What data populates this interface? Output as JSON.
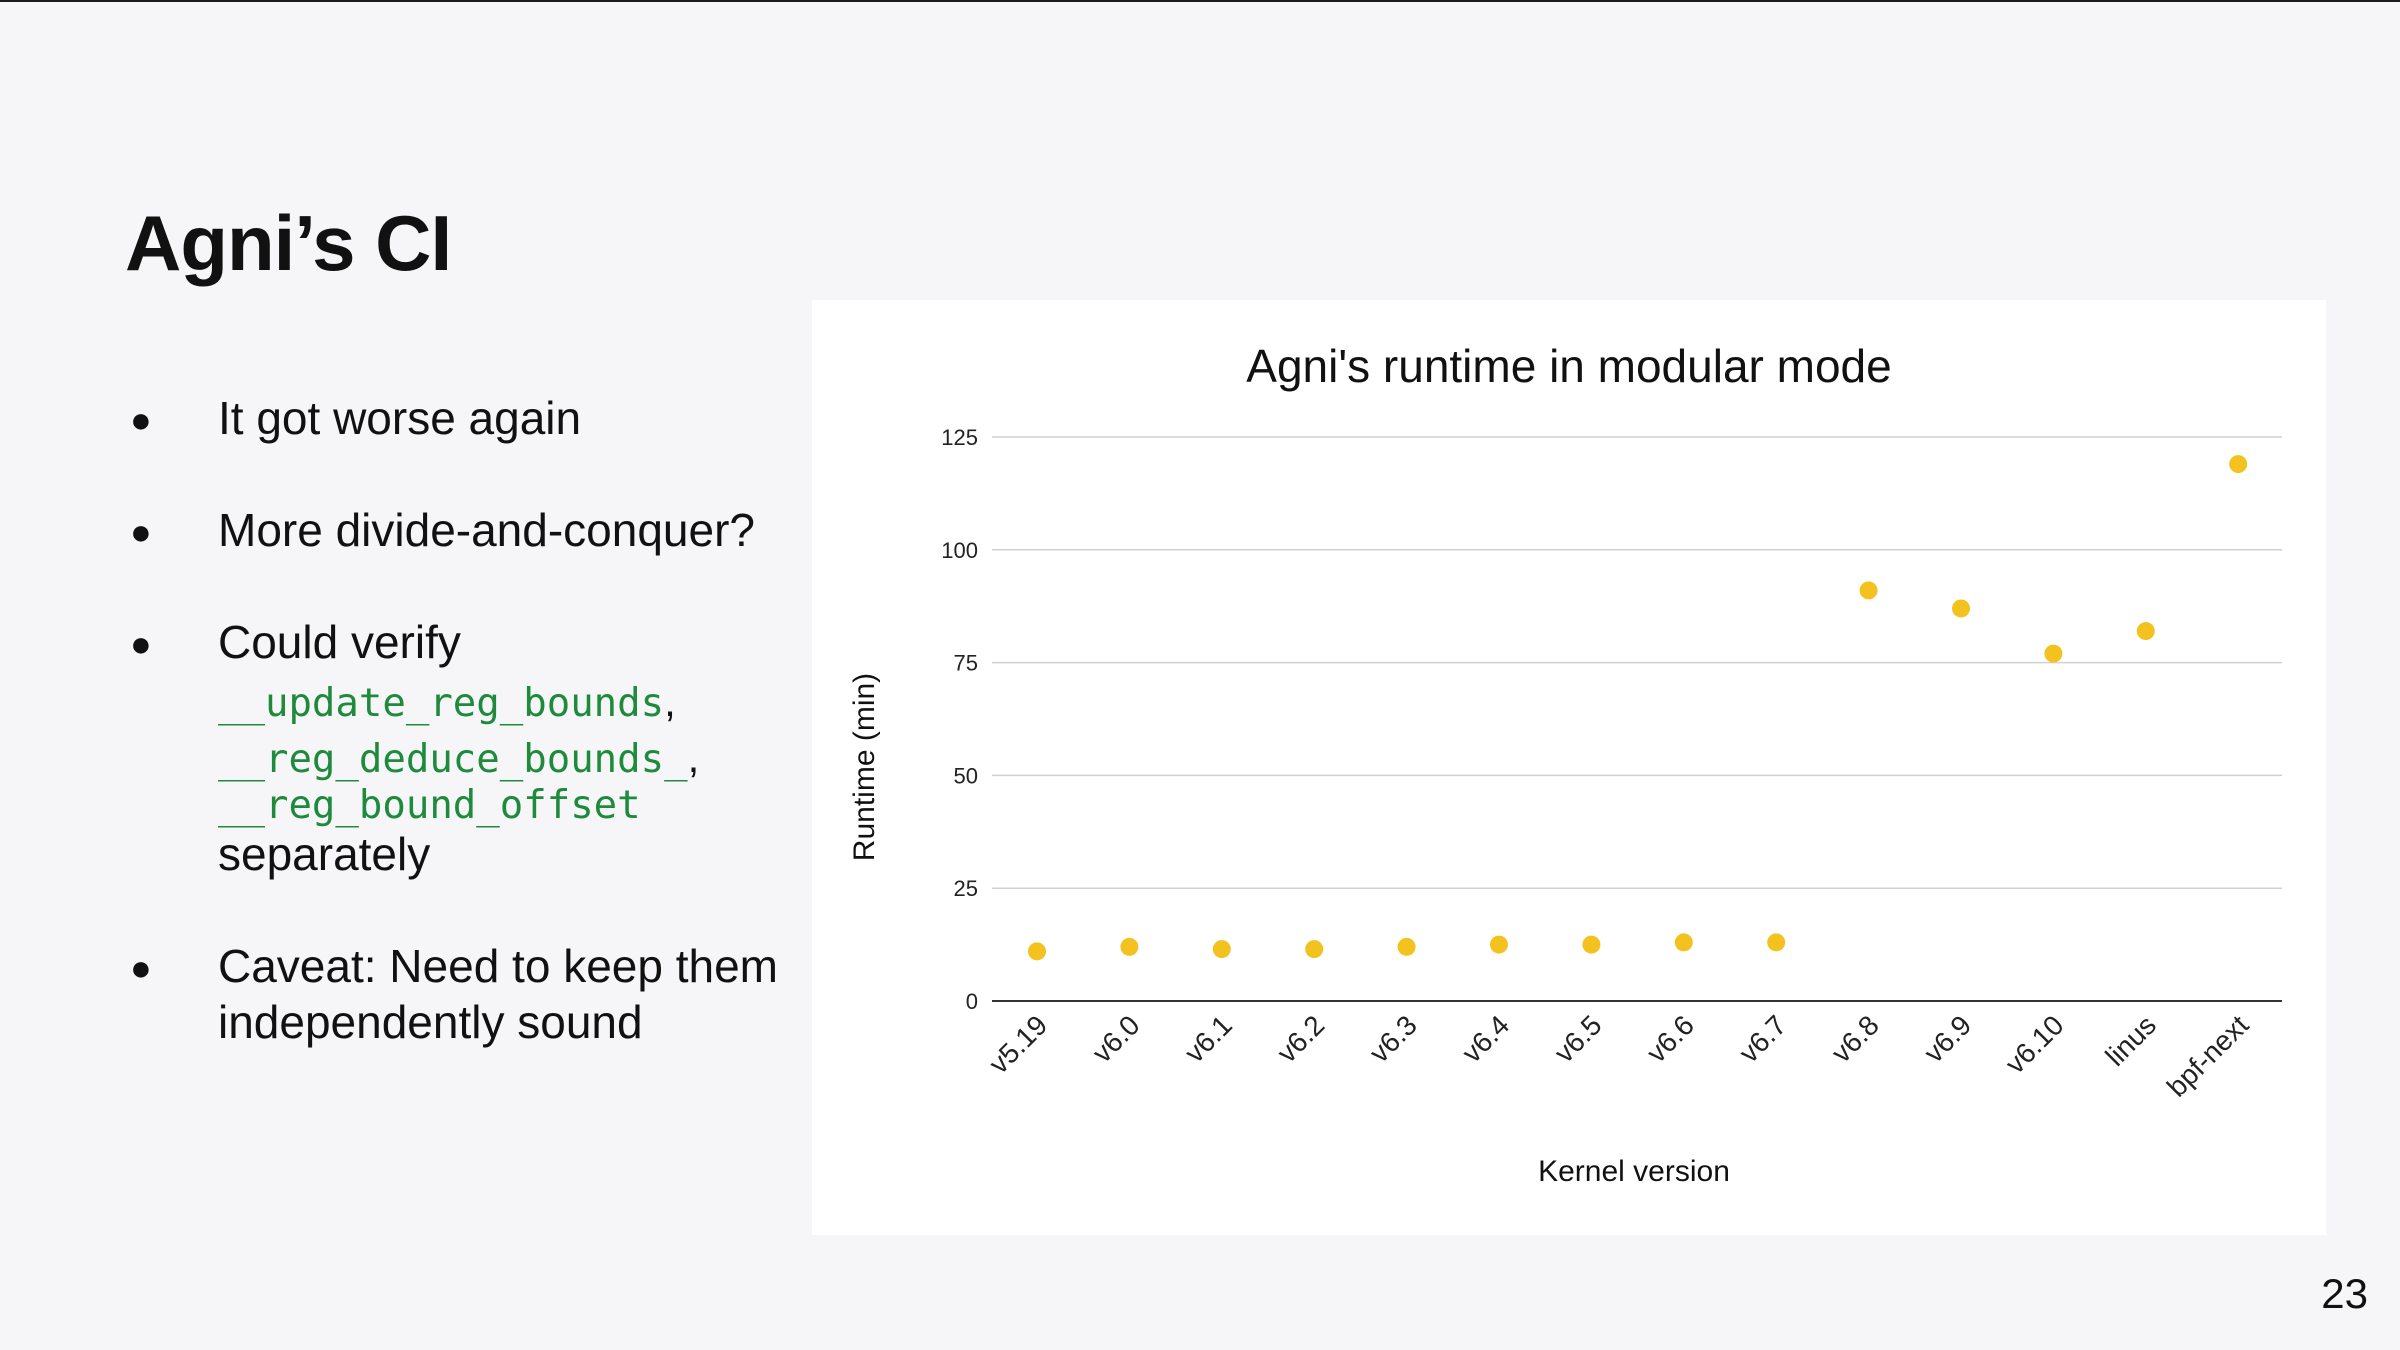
{
  "slide": {
    "title": "Agni’s CI",
    "page_number": "23"
  },
  "bullets": [
    {
      "text": "It got worse again"
    },
    {
      "text": "More divide-and-conquer?"
    },
    {
      "text": "Could verify",
      "code": [
        "__update_reg_bounds",
        "__reg_deduce_bounds_",
        "__reg_bound_offset"
      ],
      "code_separators": [
        ",",
        ",",
        ""
      ],
      "trailing": "separately"
    },
    {
      "text": "Caveat: Need to keep them",
      "continuation": "independently sound"
    }
  ],
  "colors": {
    "point": "#f4c21f",
    "code": "#1e8a3c",
    "gridline": "#d0d0d0",
    "axis": "#333333"
  },
  "chart_data": {
    "type": "scatter",
    "title": "Agni's runtime in modular mode",
    "xlabel": "Kernel version",
    "ylabel": "Runtime (min)",
    "categories": [
      "v5.19",
      "v6.0",
      "v6.1",
      "v6.2",
      "v6.3",
      "v6.4",
      "v6.5",
      "v6.6",
      "v6.7",
      "v6.8",
      "v6.9",
      "v6.10",
      "linus",
      "bpf-next"
    ],
    "values": [
      11,
      12,
      11.5,
      11.5,
      12,
      12.5,
      12.5,
      13,
      13,
      91,
      87,
      77,
      82,
      119
    ],
    "ylim": [
      0,
      125
    ],
    "yticks": [
      0,
      25,
      50,
      75,
      100,
      125
    ],
    "grid": true,
    "legend": "none"
  }
}
